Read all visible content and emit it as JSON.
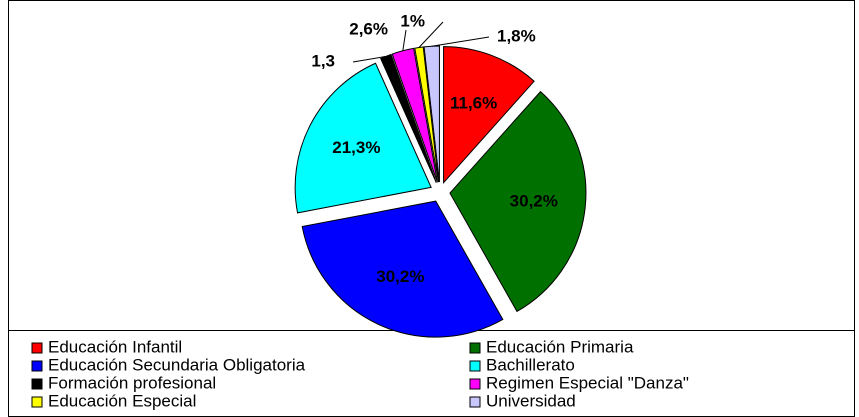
{
  "chart_data": {
    "type": "pie",
    "categories": [
      "Educación Infantil",
      "Educación Primaria",
      "Educación Secundaria Obligatoria",
      "Bachillerato",
      "Formación profesional",
      "Regimen Especial \"Danza\"",
      "Educación Especial",
      "Universidad"
    ],
    "values": [
      11.6,
      30.2,
      30.2,
      21.3,
      1.3,
      2.6,
      1,
      1.8
    ],
    "value_labels": [
      "11,6%",
      "30,2%",
      "30,2%",
      "21,3%",
      "1,3",
      "2,6%",
      "1%",
      "1,8%"
    ],
    "colors": [
      "#ff0000",
      "#007000",
      "#0000ff",
      "#00ffff",
      "#000000",
      "#ff00ff",
      "#ffff00",
      "#c8c8ff"
    ]
  }
}
